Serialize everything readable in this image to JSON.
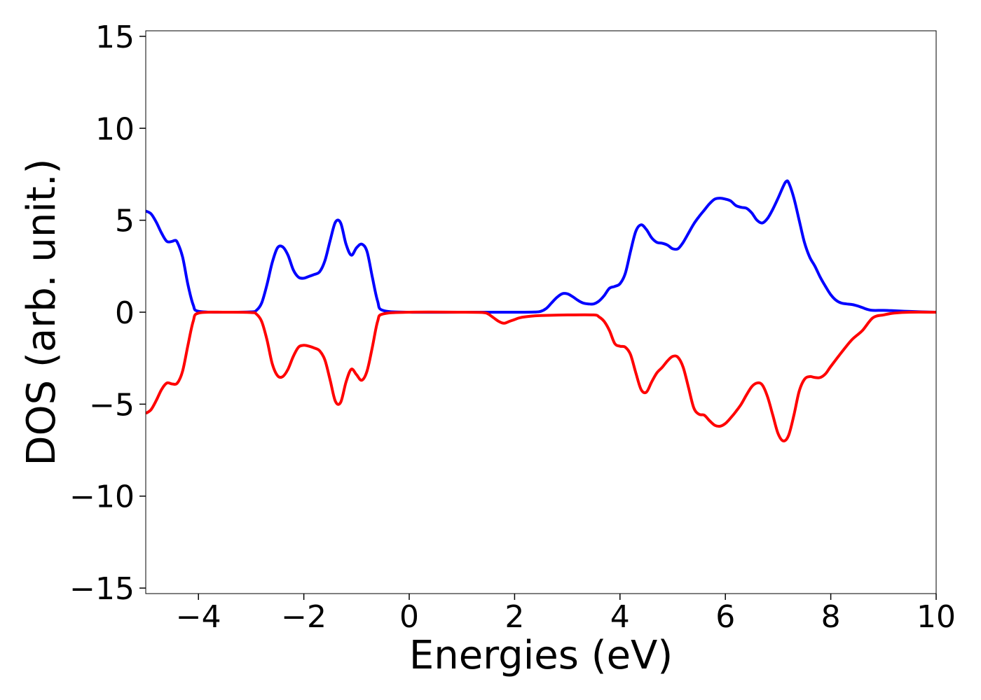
{
  "chart_data": {
    "type": "line",
    "xlabel": "Energies (eV)",
    "ylabel": "DOS (arb. unit.)",
    "xlim": [
      -5,
      10
    ],
    "ylim": [
      -15.3,
      15.3
    ],
    "xticks": [
      -4,
      -2,
      0,
      2,
      4,
      6,
      8,
      10
    ],
    "xtick_labels": [
      "−4",
      "−2",
      "0",
      "2",
      "4",
      "6",
      "8",
      "10"
    ],
    "yticks": [
      -15,
      -10,
      -5,
      0,
      5,
      10,
      15
    ],
    "ytick_labels": [
      "−15",
      "−10",
      "−5",
      "0",
      "5",
      "10",
      "15"
    ],
    "grid": false,
    "series": [
      {
        "color": "#0000ff",
        "x": [
          -5.0,
          -4.9,
          -4.8,
          -4.7,
          -4.6,
          -4.5,
          -4.45,
          -4.4,
          -4.3,
          -4.2,
          -4.1,
          -4.0,
          -3.5,
          -3.0,
          -2.9,
          -2.8,
          -2.7,
          -2.6,
          -2.5,
          -2.4,
          -2.3,
          -2.2,
          -2.1,
          -2.0,
          -1.9,
          -1.8,
          -1.7,
          -1.6,
          -1.5,
          -1.4,
          -1.3,
          -1.2,
          -1.1,
          -1.0,
          -0.9,
          -0.8,
          -0.7,
          -0.6,
          -0.5,
          0.0,
          1.0,
          2.0,
          2.4,
          2.5,
          2.6,
          2.7,
          2.8,
          2.9,
          3.0,
          3.1,
          3.2,
          3.3,
          3.4,
          3.5,
          3.6,
          3.7,
          3.8,
          3.9,
          4.0,
          4.1,
          4.2,
          4.3,
          4.4,
          4.5,
          4.6,
          4.7,
          4.8,
          4.9,
          5.0,
          5.1,
          5.2,
          5.3,
          5.4,
          5.5,
          5.6,
          5.7,
          5.8,
          5.9,
          6.0,
          6.1,
          6.2,
          6.3,
          6.4,
          6.5,
          6.6,
          6.7,
          6.8,
          6.9,
          7.0,
          7.1,
          7.15,
          7.2,
          7.3,
          7.4,
          7.5,
          7.6,
          7.7,
          7.8,
          7.9,
          8.0,
          8.1,
          8.2,
          8.3,
          8.4,
          8.5,
          8.6,
          8.7,
          8.8,
          9.0,
          9.2,
          9.5,
          10.0
        ],
        "y": [
          5.5,
          5.35,
          4.9,
          4.3,
          3.85,
          3.85,
          3.9,
          3.8,
          3.0,
          1.5,
          0.4,
          0.05,
          0.0,
          0.02,
          0.1,
          0.5,
          1.5,
          2.7,
          3.5,
          3.55,
          3.1,
          2.3,
          1.9,
          1.85,
          1.95,
          2.05,
          2.2,
          2.8,
          3.9,
          4.9,
          4.85,
          3.7,
          3.1,
          3.5,
          3.7,
          3.3,
          1.9,
          0.6,
          0.1,
          0.0,
          0.0,
          0.0,
          0.01,
          0.05,
          0.2,
          0.5,
          0.8,
          1.0,
          1.0,
          0.85,
          0.65,
          0.5,
          0.45,
          0.45,
          0.6,
          0.9,
          1.3,
          1.4,
          1.55,
          2.1,
          3.3,
          4.4,
          4.75,
          4.5,
          4.05,
          3.8,
          3.75,
          3.65,
          3.45,
          3.45,
          3.8,
          4.3,
          4.8,
          5.2,
          5.55,
          5.9,
          6.15,
          6.2,
          6.15,
          6.05,
          5.8,
          5.7,
          5.65,
          5.4,
          5.0,
          4.85,
          5.1,
          5.6,
          6.2,
          6.85,
          7.1,
          7.05,
          6.2,
          5.0,
          3.8,
          3.0,
          2.5,
          1.9,
          1.4,
          0.95,
          0.65,
          0.5,
          0.45,
          0.42,
          0.35,
          0.25,
          0.15,
          0.1,
          0.1,
          0.08,
          0.04,
          0.0
        ]
      },
      {
        "color": "#ff0000",
        "x": [
          -5.0,
          -4.9,
          -4.8,
          -4.7,
          -4.6,
          -4.5,
          -4.4,
          -4.3,
          -4.2,
          -4.1,
          -4.0,
          -3.5,
          -3.0,
          -2.9,
          -2.8,
          -2.7,
          -2.6,
          -2.5,
          -2.4,
          -2.3,
          -2.2,
          -2.1,
          -2.0,
          -1.9,
          -1.8,
          -1.7,
          -1.6,
          -1.5,
          -1.4,
          -1.3,
          -1.2,
          -1.1,
          -1.0,
          -0.9,
          -0.8,
          -0.7,
          -0.6,
          -0.5,
          0.0,
          1.0,
          1.4,
          1.5,
          1.6,
          1.7,
          1.8,
          1.9,
          2.0,
          2.1,
          2.3,
          2.5,
          3.0,
          3.5,
          3.6,
          3.7,
          3.8,
          3.9,
          4.0,
          4.1,
          4.2,
          4.3,
          4.4,
          4.5,
          4.6,
          4.7,
          4.8,
          4.9,
          5.0,
          5.1,
          5.2,
          5.3,
          5.4,
          5.5,
          5.6,
          5.7,
          5.8,
          5.9,
          6.0,
          6.1,
          6.2,
          6.3,
          6.4,
          6.5,
          6.6,
          6.7,
          6.8,
          6.9,
          7.0,
          7.1,
          7.2,
          7.3,
          7.4,
          7.5,
          7.6,
          7.7,
          7.8,
          7.9,
          8.0,
          8.2,
          8.4,
          8.6,
          8.8,
          9.0,
          9.2,
          9.5,
          10.0
        ],
        "y": [
          -5.5,
          -5.3,
          -4.8,
          -4.2,
          -3.85,
          -3.9,
          -3.85,
          -3.2,
          -1.8,
          -0.5,
          -0.05,
          0.0,
          -0.02,
          -0.1,
          -0.5,
          -1.5,
          -2.8,
          -3.45,
          -3.5,
          -3.1,
          -2.4,
          -1.9,
          -1.8,
          -1.85,
          -1.95,
          -2.1,
          -2.6,
          -3.7,
          -4.85,
          -4.9,
          -3.8,
          -3.1,
          -3.4,
          -3.7,
          -3.2,
          -1.9,
          -0.5,
          -0.1,
          0.0,
          0.0,
          -0.02,
          -0.1,
          -0.3,
          -0.5,
          -0.6,
          -0.5,
          -0.4,
          -0.3,
          -0.22,
          -0.18,
          -0.15,
          -0.15,
          -0.25,
          -0.5,
          -1.0,
          -1.7,
          -1.85,
          -1.9,
          -2.3,
          -3.3,
          -4.2,
          -4.35,
          -3.8,
          -3.3,
          -3.0,
          -2.65,
          -2.4,
          -2.45,
          -3.0,
          -4.1,
          -5.2,
          -5.55,
          -5.6,
          -5.9,
          -6.15,
          -6.2,
          -6.05,
          -5.75,
          -5.4,
          -5.0,
          -4.5,
          -4.05,
          -3.85,
          -3.95,
          -4.6,
          -5.6,
          -6.6,
          -7.0,
          -6.7,
          -5.6,
          -4.3,
          -3.65,
          -3.5,
          -3.55,
          -3.55,
          -3.35,
          -2.95,
          -2.2,
          -1.5,
          -1.0,
          -0.3,
          -0.15,
          -0.05,
          0.0,
          0.0
        ]
      }
    ]
  }
}
